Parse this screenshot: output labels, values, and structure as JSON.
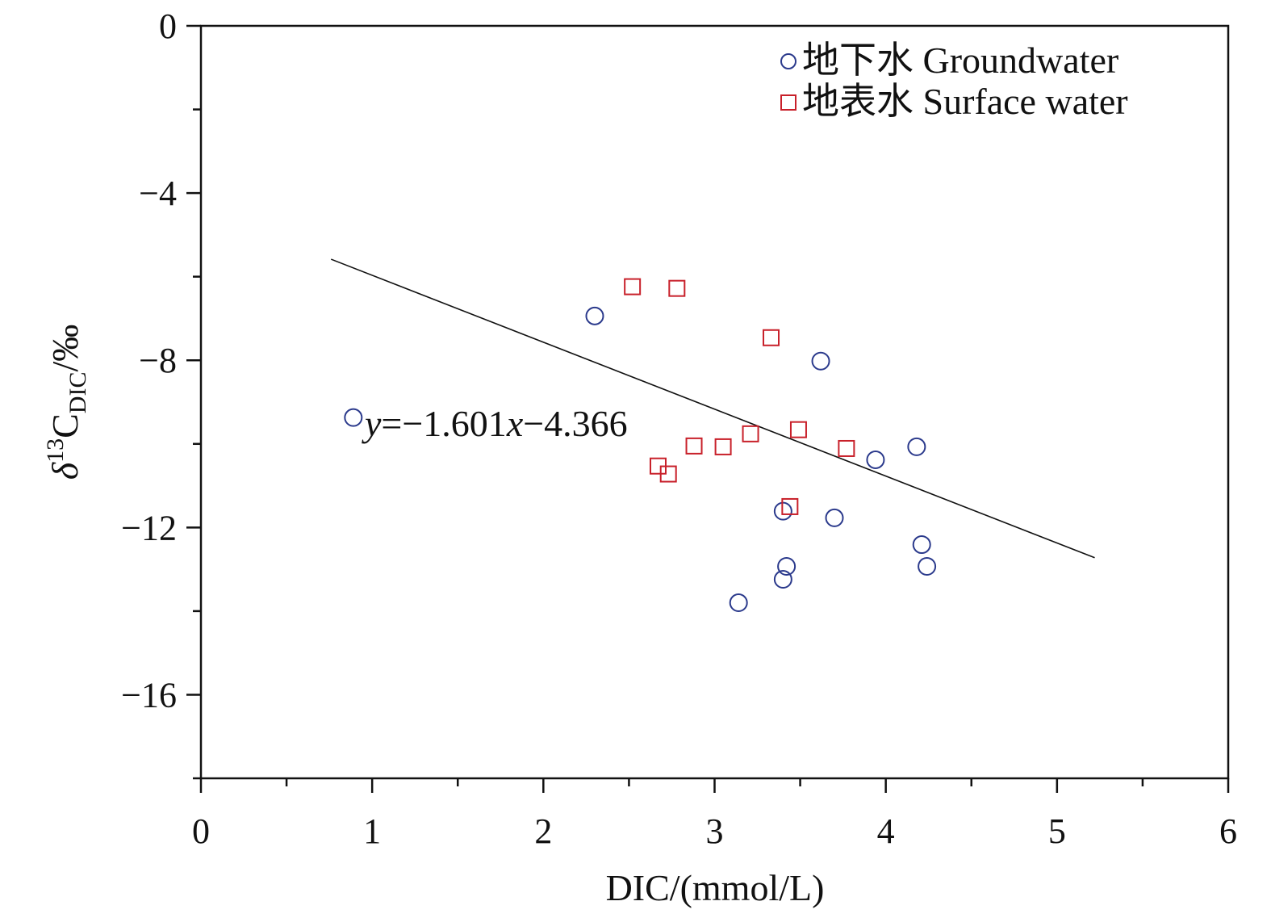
{
  "chart_data": {
    "type": "scatter",
    "title": "",
    "xlabel": "DIC/(mmol/L)",
    "ylabel": {
      "delta": "δ",
      "sup": "13",
      "main": "C",
      "sub": "DIC",
      "unit": "/‰"
    },
    "xlim": [
      0,
      6
    ],
    "ylim": [
      -18,
      0
    ],
    "xticks": [
      0,
      1,
      2,
      3,
      4,
      5,
      6
    ],
    "xtick_labels": [
      "0",
      "1",
      "2",
      "3",
      "4",
      "5",
      "6"
    ],
    "yticks": [
      0,
      -4,
      -8,
      -12,
      -16
    ],
    "ytick_labels": [
      "0",
      "−4",
      "−8",
      "−12",
      "−16"
    ],
    "grid": false,
    "legend_position": "top-right",
    "series": [
      {
        "name": "地下水 Groundwater",
        "marker": "circle",
        "color": "#2b3a8c",
        "points": [
          [
            2.3,
            -6.94
          ],
          [
            0.89,
            -9.37
          ],
          [
            3.62,
            -8.02
          ],
          [
            4.18,
            -10.07
          ],
          [
            3.94,
            -10.38
          ],
          [
            3.4,
            -11.61
          ],
          [
            3.7,
            -11.77
          ],
          [
            4.21,
            -12.41
          ],
          [
            3.42,
            -12.93
          ],
          [
            4.24,
            -12.93
          ],
          [
            3.4,
            -13.24
          ],
          [
            3.14,
            -13.8
          ]
        ]
      },
      {
        "name": "地表水 Surface water",
        "marker": "square",
        "color": "#c8202a",
        "points": [
          [
            2.52,
            -6.24
          ],
          [
            2.78,
            -6.28
          ],
          [
            3.33,
            -7.46
          ],
          [
            3.49,
            -9.66
          ],
          [
            3.21,
            -9.76
          ],
          [
            2.88,
            -10.05
          ],
          [
            3.05,
            -10.07
          ],
          [
            3.77,
            -10.11
          ],
          [
            2.67,
            -10.53
          ],
          [
            2.73,
            -10.72
          ],
          [
            3.44,
            -11.5
          ]
        ]
      }
    ],
    "fit": {
      "slope": -1.601,
      "intercept": -4.366,
      "x_range": [
        0.76,
        5.22
      ],
      "label_parts": {
        "y": "y",
        "eq": "=−1.601",
        "x": "x",
        "rest": "−4.366"
      }
    }
  }
}
